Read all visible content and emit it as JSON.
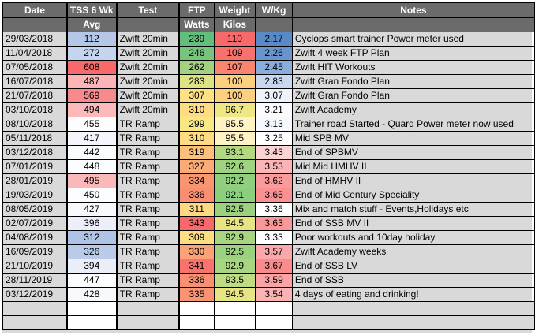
{
  "headers": {
    "date": "Date",
    "tss": "TSS 6 Wk",
    "tss2": "Avg",
    "test": "Test",
    "ftp": "FTP",
    "ftp2": "Watts",
    "weight": "Weight",
    "weight2": "Kilos",
    "wkg": "W/Kg",
    "notes": "Notes"
  },
  "rows": [
    {
      "date": "29/03/2018",
      "tss": "112",
      "test": "Zwift 20min",
      "ftp": "239",
      "weight": "110",
      "wkg": "2.17",
      "notes": "Cyclops smart trainer Power meter used",
      "c": [
        "#b4c7e7",
        "#63be7b",
        "#f8696b",
        "#5a8ac6"
      ]
    },
    {
      "date": "11/04/2018",
      "tss": "272",
      "test": "Zwift 20min",
      "ftp": "246",
      "weight": "109",
      "wkg": "2.26",
      "notes": "Zwift 4 week FTP Plan",
      "c": [
        "#c5d4ef",
        "#77c47d",
        "#f8726d",
        "#6995cc"
      ]
    },
    {
      "date": "07/05/2018",
      "tss": "608",
      "test": "Zwift 20min",
      "ftp": "262",
      "weight": "107",
      "wkg": "2.45",
      "notes": "Zwift HIT Workouts",
      "c": [
        "#f8696b",
        "#a4d17f",
        "#f98470",
        "#8aaedb"
      ]
    },
    {
      "date": "16/07/2018",
      "tss": "487",
      "test": "Zwift 20min",
      "ftp": "283",
      "weight": "100",
      "wkg": "2.83",
      "notes": "Zwift Gran Fondo Plan",
      "c": [
        "#fbb5b6",
        "#dde283",
        "#fdd07f",
        "#c7d8f0"
      ]
    },
    {
      "date": "21/07/2018",
      "tss": "569",
      "test": "Zwift 20min",
      "ftp": "307",
      "weight": "100",
      "wkg": "3.07",
      "notes": "Zwift Gran Fondo Plan",
      "c": [
        "#f98a8c",
        "#ffe082",
        "#fdd07f",
        "#eef2fb"
      ]
    },
    {
      "date": "03/10/2018",
      "tss": "494",
      "test": "Zwift 20min",
      "ftp": "310",
      "weight": "96.7",
      "wkg": "3.21",
      "notes": "Zwift Academy",
      "c": [
        "#fbb9ba",
        "#ffdc81",
        "#eee784",
        "#fbfbfd"
      ]
    },
    {
      "date": "08/10/2018",
      "tss": "455",
      "test": "TR Ramp",
      "ftp": "299",
      "weight": "95.5",
      "wkg": "3.13",
      "notes": "Trainer road Started - Quarq Power meter now used",
      "c": [
        "#fdfdfe",
        "#f7e884",
        "#fff2c4",
        "#f5f8fd"
      ]
    },
    {
      "date": "05/11/2018",
      "tss": "417",
      "test": "TR Ramp",
      "ftp": "310",
      "weight": "95.5",
      "wkg": "3.25",
      "notes": "Mid SPB MV",
      "c": [
        "#f4f6fb",
        "#ffdc81",
        "#fff2c4",
        "#ffffff"
      ]
    },
    {
      "date": "03/12/2018",
      "tss": "442",
      "test": "TR Ramp",
      "ftp": "319",
      "weight": "93.1",
      "wkg": "3.43",
      "notes": "End of SPBMV",
      "c": [
        "#fbfcfe",
        "#fdc07c",
        "#b2d980",
        "#fcd3d4"
      ]
    },
    {
      "date": "07/01/2019",
      "tss": "448",
      "test": "TR Ramp",
      "ftp": "327",
      "weight": "92.6",
      "wkg": "3.53",
      "notes": "Mid Mid HMHV II",
      "c": [
        "#fcfdfe",
        "#fbab77",
        "#9ed37f",
        "#fbb5b6"
      ]
    },
    {
      "date": "28/01/2019",
      "tss": "495",
      "test": "TR Ramp",
      "ftp": "334",
      "weight": "92.2",
      "wkg": "3.62",
      "notes": "End of HMHV II",
      "c": [
        "#fbb8b9",
        "#f99672",
        "#8fcf7e",
        "#f99a9c"
      ]
    },
    {
      "date": "19/03/2019",
      "tss": "450",
      "test": "TR Ramp",
      "ftp": "336",
      "weight": "92.1",
      "wkg": "3.65",
      "notes": "End of Mid Century Speciality",
      "c": [
        "#fcfdfe",
        "#f98f71",
        "#8bce7e",
        "#f99193"
      ]
    },
    {
      "date": "08/05/2019",
      "tss": "427",
      "test": "TR Ramp",
      "ftp": "311",
      "weight": "92.5",
      "wkg": "3.36",
      "notes": "Mix and match stuff - Events,Holidays etc",
      "c": [
        "#f7f9fd",
        "#ffd981",
        "#9ad27f",
        "#ffffff"
      ]
    },
    {
      "date": "02/07/2019",
      "tss": "396",
      "test": "TR Ramp",
      "ftp": "343",
      "weight": "94.5",
      "wkg": "3.63",
      "notes": "End of SSB MV II",
      "c": [
        "#eaeff9",
        "#f8696b",
        "#e7e583",
        "#f99799"
      ]
    },
    {
      "date": "04/08/2019",
      "tss": "312",
      "test": "TR Ramp",
      "ftp": "309",
      "weight": "92.9",
      "wkg": "3.33",
      "notes": "Poor workouts and 10day holiday",
      "c": [
        "#aec3e6",
        "#ffde82",
        "#a8d580",
        "#ffffff"
      ]
    },
    {
      "date": "16/09/2019",
      "tss": "326",
      "test": "TR Ramp",
      "ftp": "330",
      "weight": "92.5",
      "wkg": "3.57",
      "notes": "Zwift Academy weeks",
      "c": [
        "#b9cbe9",
        "#fba276",
        "#9ad27f",
        "#fba8aa"
      ]
    },
    {
      "date": "21/10/2019",
      "tss": "394",
      "test": "TR Ramp",
      "ftp": "341",
      "weight": "92.9",
      "wkg": "3.67",
      "notes": "End of SSB LV",
      "c": [
        "#e9eef9",
        "#f8736d",
        "#a8d580",
        "#f98b8d"
      ]
    },
    {
      "date": "28/11/2019",
      "tss": "447",
      "test": "TR Ramp",
      "ftp": "336",
      "weight": "93.5",
      "wkg": "3.59",
      "notes": "End of SSB",
      "c": [
        "#fcfdfe",
        "#f98f71",
        "#bedc81",
        "#faa2a4"
      ]
    },
    {
      "date": "03/12/2019",
      "tss": "428",
      "test": "TR Ramp",
      "ftp": "335",
      "weight": "94.5",
      "wkg": "3.54",
      "notes": "4 days of eating and drinking!",
      "c": [
        "#f8f9fd",
        "#f99372",
        "#e7e583",
        "#fbb2b3"
      ]
    }
  ]
}
